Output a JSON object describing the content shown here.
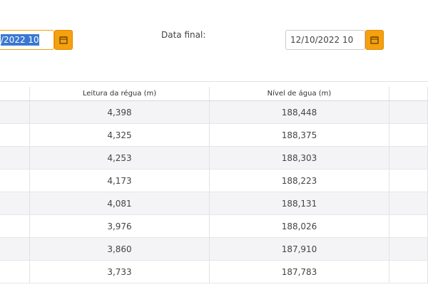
{
  "filters": {
    "start_date": "/2022 10",
    "end_label": "Data final:",
    "end_date": "12/10/2022 10"
  },
  "table": {
    "columns": [
      "Leitura da régua (m)",
      "Nível de água (m)"
    ],
    "rows": [
      [
        "4,398",
        "188,448"
      ],
      [
        "4,325",
        "188,375"
      ],
      [
        "4,253",
        "188,303"
      ],
      [
        "4,173",
        "188,223"
      ],
      [
        "4,081",
        "188,131"
      ],
      [
        "3,976",
        "188,026"
      ],
      [
        "3,860",
        "187,910"
      ],
      [
        "3,733",
        "187,783"
      ]
    ]
  }
}
